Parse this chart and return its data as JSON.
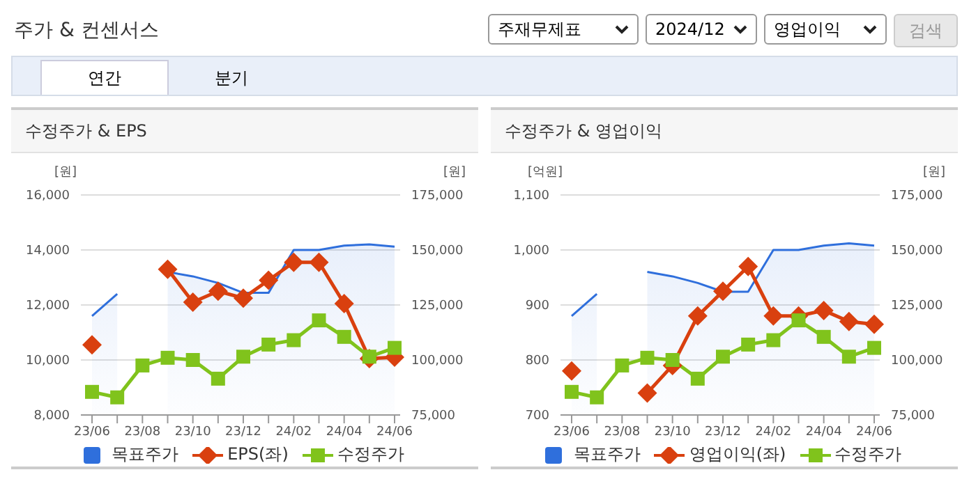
{
  "chart_data": [
    {
      "type": "other",
      "title": "주가 & 컨센서스",
      "annotations": [
        "주재무제표",
        "2024/12",
        "영업이익",
        "검색",
        "연간",
        "분기"
      ]
    },
    {
      "type": "line",
      "title": "수정주가 & EPS",
      "ylabel": "[원]",
      "y2label": "[원]",
      "categories": [
        "23/06",
        null,
        "23/08",
        null,
        "23/10",
        null,
        "23/12",
        null,
        "24/02",
        null,
        "24/04",
        null,
        "24/06"
      ],
      "series": [
        {
          "name": "목표주가",
          "type": "area",
          "axis": "y2",
          "color": "#2f6fdc",
          "marker": "none",
          "values": [
            120000,
            130000,
            null,
            140000,
            138000,
            135000,
            130500,
            130500,
            150000,
            150000,
            152000,
            152500,
            151500
          ]
        },
        {
          "name": "EPS(좌)",
          "type": "line",
          "color": "#d9400f",
          "marker": "diamond",
          "values": [
            10550,
            null,
            null,
            13300,
            12100,
            12500,
            12250,
            12900,
            13550,
            13550,
            12050,
            10050,
            10100
          ]
        },
        {
          "name": "수정주가",
          "type": "line",
          "axis": "y2",
          "color": "#80c31c",
          "marker": "square",
          "values": [
            85500,
            83000,
            97500,
            101000,
            100000,
            91500,
            101500,
            107000,
            109000,
            118000,
            110500,
            101500,
            105500
          ]
        }
      ],
      "ylim": [
        8000,
        16000
      ],
      "yticks": [
        {
          "value": 8000,
          "label": "8,000"
        },
        {
          "value": 10000,
          "label": "10,000"
        },
        {
          "value": 12000,
          "label": "12,000"
        },
        {
          "value": 14000,
          "label": "14,000"
        },
        {
          "value": 16000,
          "label": "16,000"
        }
      ],
      "y2lim": [
        75000,
        175000
      ],
      "y2ticks": [
        {
          "value": 75000,
          "label": "75,000"
        },
        {
          "value": 100000,
          "label": "100,000"
        },
        {
          "value": 125000,
          "label": "125,000"
        },
        {
          "value": 150000,
          "label": "150,000"
        },
        {
          "value": 175000,
          "label": "175,000"
        }
      ],
      "grid": "y",
      "legend": "bottom"
    },
    {
      "type": "line",
      "title": "수정주가 & 영업이익",
      "ylabel": "[억원]",
      "y2label": "[원]",
      "categories": [
        "23/06",
        null,
        "23/08",
        null,
        "23/10",
        null,
        "23/12",
        null,
        "24/02",
        null,
        "24/04",
        null,
        "24/06"
      ],
      "series": [
        {
          "name": "목표주가",
          "type": "area",
          "axis": "y2",
          "color": "#2f6fdc",
          "marker": "none",
          "values": [
            120000,
            130000,
            null,
            140000,
            138000,
            135000,
            131000,
            131000,
            150000,
            150000,
            152000,
            153000,
            152000
          ]
        },
        {
          "name": "영업이익(좌)",
          "type": "line",
          "color": "#d9400f",
          "marker": "diamond",
          "values": [
            780,
            null,
            null,
            740,
            790,
            880,
            925,
            970,
            880,
            880,
            890,
            870,
            865
          ]
        },
        {
          "name": "수정주가",
          "type": "line",
          "axis": "y2",
          "color": "#80c31c",
          "marker": "square",
          "values": [
            85500,
            83000,
            97500,
            101000,
            100000,
            91500,
            101500,
            107000,
            109000,
            118000,
            110500,
            101500,
            105500
          ]
        }
      ],
      "ylim": [
        700,
        1100
      ],
      "yticks": [
        700,
        800,
        900,
        {
          "value": 1000,
          "label": "1,000"
        },
        {
          "value": 1100,
          "label": "1,100"
        }
      ],
      "y2lim": [
        75000,
        175000
      ],
      "y2ticks": [
        {
          "value": 75000,
          "label": "75,000"
        },
        {
          "value": 100000,
          "label": "100,000"
        },
        {
          "value": 125000,
          "label": "125,000"
        },
        {
          "value": 150000,
          "label": "150,000"
        },
        {
          "value": 175000,
          "label": "175,000"
        }
      ],
      "grid": "y",
      "legend": "bottom"
    }
  ]
}
